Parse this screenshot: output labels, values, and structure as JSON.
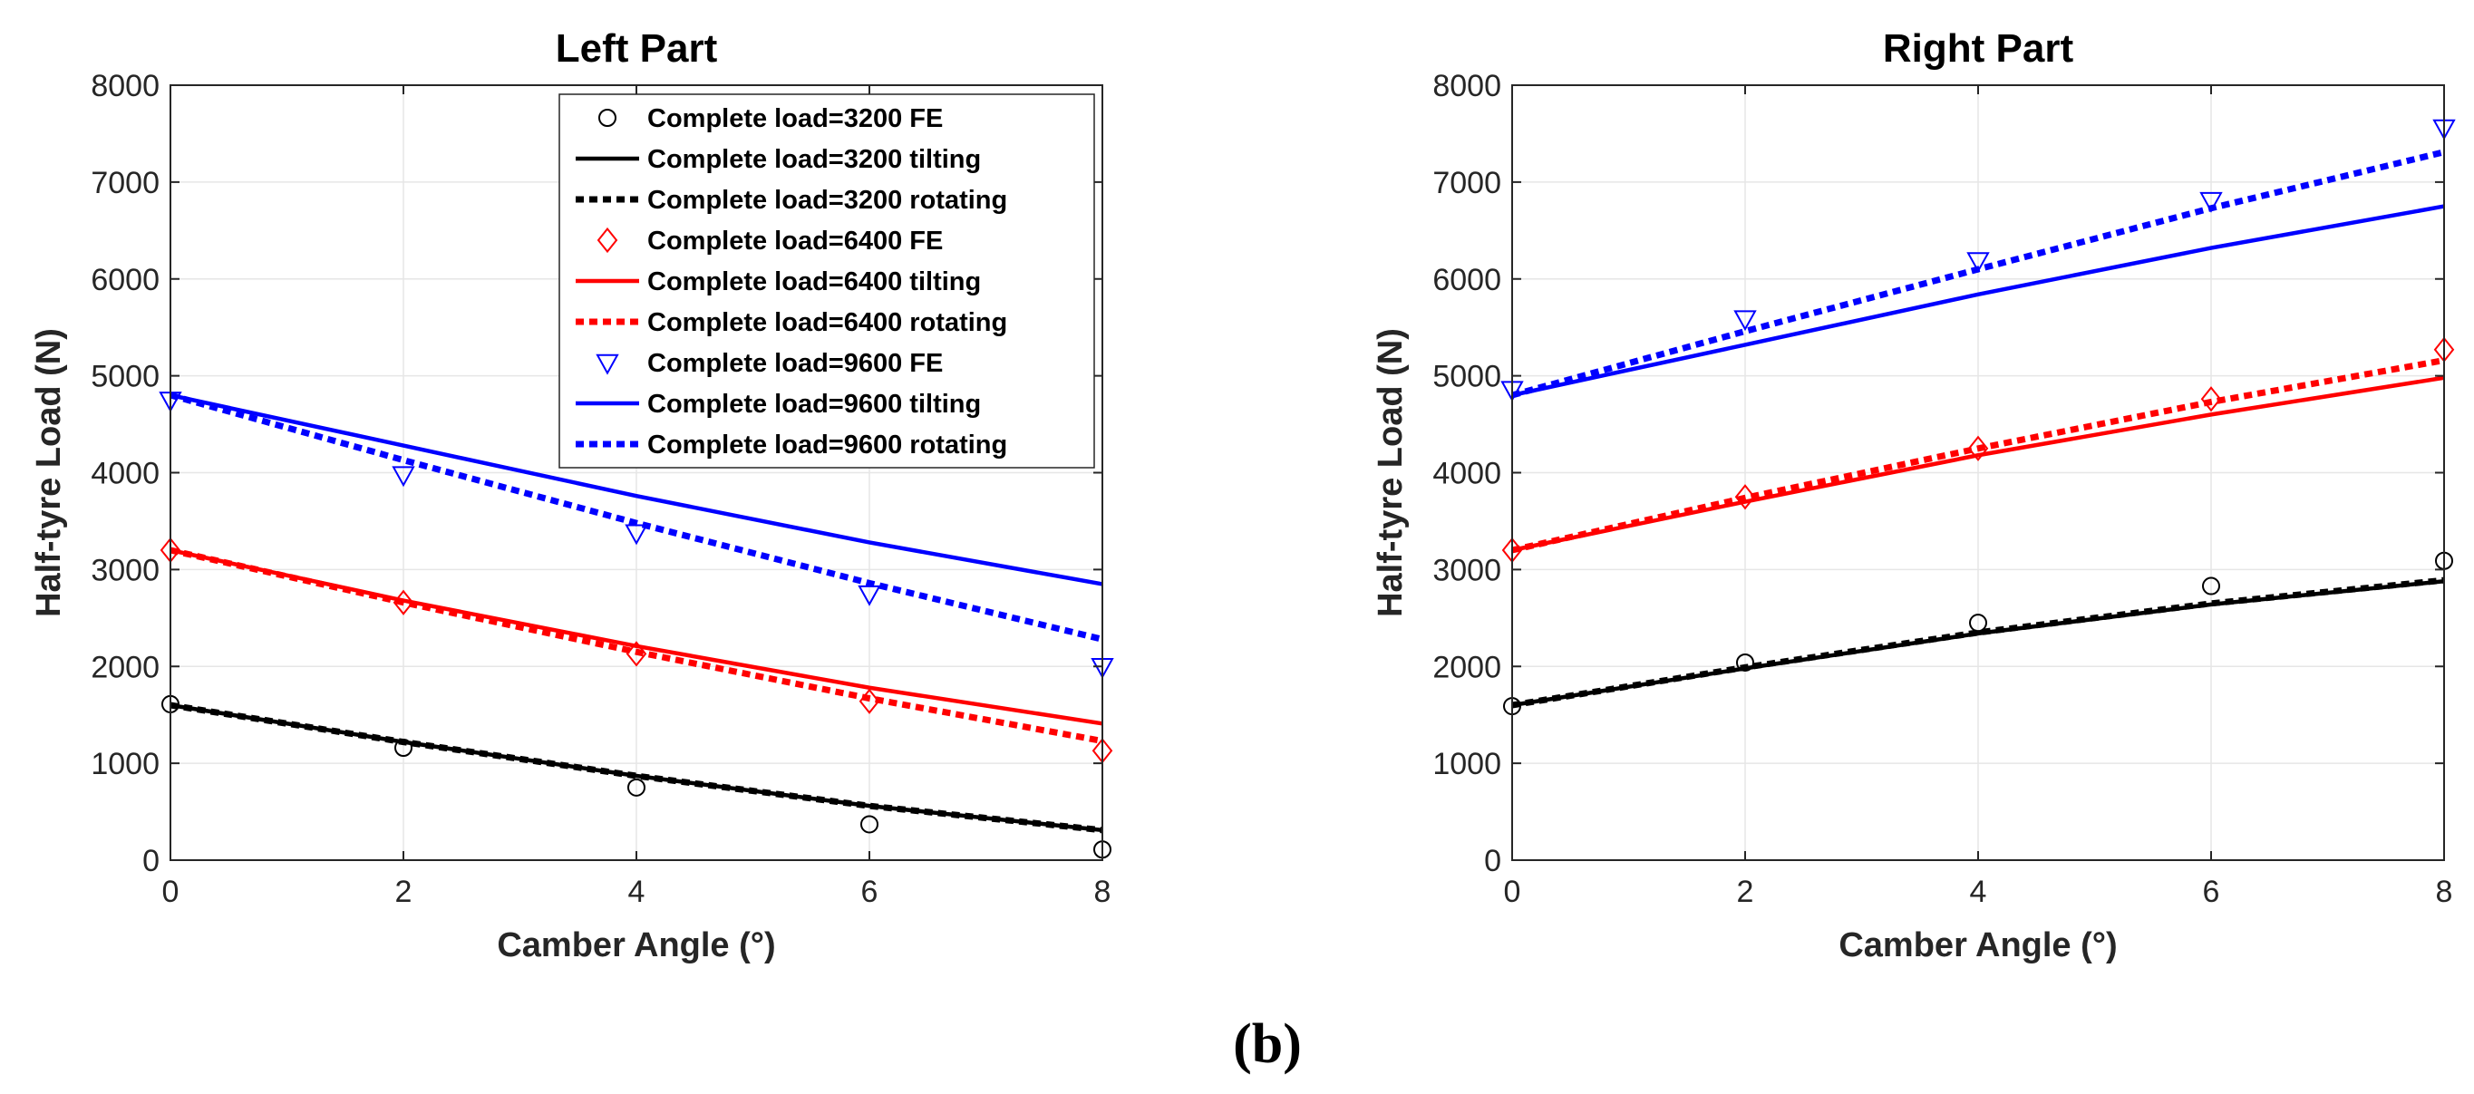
{
  "caption": "(b)",
  "colors": {
    "3200": "#000000",
    "6400": "#ff0000",
    "9600": "#0000ff"
  },
  "legend_labels": [
    "Complete load=3200 FE",
    "Complete load=3200 tilting",
    "Complete load=3200 rotating",
    "Complete load=6400 FE",
    "Complete load=6400 tilting",
    "Complete load=6400 rotating",
    "Complete load=9600 FE",
    "Complete load=9600 tilting",
    "Complete load=9600 rotating"
  ],
  "chart_data": [
    {
      "type": "line",
      "title": "Left Part",
      "xlabel": "Camber Angle (°)",
      "ylabel": "Half-tyre Load (N)",
      "xlim": [
        0,
        8
      ],
      "ylim": [
        0,
        8000
      ],
      "xticks": [
        0,
        2,
        4,
        6,
        8
      ],
      "yticks": [
        0,
        1000,
        2000,
        3000,
        4000,
        5000,
        6000,
        7000,
        8000
      ],
      "grid": true,
      "legend": "top-right",
      "x": [
        0,
        2,
        4,
        6,
        8
      ],
      "series": [
        {
          "name": "Complete load=3200 FE",
          "style": "marker-circle",
          "color": "#000000",
          "values": [
            1610,
            1160,
            750,
            370,
            110
          ]
        },
        {
          "name": "Complete load=3200 tilting",
          "style": "solid",
          "color": "#000000",
          "values": [
            1600,
            1220,
            870,
            560,
            310
          ]
        },
        {
          "name": "Complete load=3200 rotating",
          "style": "dashed",
          "color": "#000000",
          "values": [
            1600,
            1220,
            870,
            560,
            310
          ]
        },
        {
          "name": "Complete load=6400 FE",
          "style": "marker-diamond",
          "color": "#ff0000",
          "values": [
            3200,
            2660,
            2130,
            1640,
            1130
          ]
        },
        {
          "name": "Complete load=6400 tilting",
          "style": "solid",
          "color": "#ff0000",
          "values": [
            3200,
            2680,
            2210,
            1780,
            1410
          ]
        },
        {
          "name": "Complete load=6400 rotating",
          "style": "dashed",
          "color": "#ff0000",
          "values": [
            3200,
            2660,
            2150,
            1670,
            1230
          ]
        },
        {
          "name": "Complete load=9600 FE",
          "style": "marker-triangle",
          "color": "#0000ff",
          "values": [
            4750,
            3980,
            3380,
            2750,
            2000
          ]
        },
        {
          "name": "Complete load=9600 tilting",
          "style": "solid",
          "color": "#0000ff",
          "values": [
            4800,
            4280,
            3760,
            3280,
            2850
          ]
        },
        {
          "name": "Complete load=9600 rotating",
          "style": "dashed",
          "color": "#0000ff",
          "values": [
            4800,
            4130,
            3480,
            2860,
            2280
          ]
        }
      ]
    },
    {
      "type": "line",
      "title": "Right Part",
      "xlabel": "Camber Angle (°)",
      "ylabel": "Half-tyre Load (N)",
      "xlim": [
        0,
        8
      ],
      "ylim": [
        0,
        8000
      ],
      "xticks": [
        0,
        2,
        4,
        6,
        8
      ],
      "yticks": [
        0,
        1000,
        2000,
        3000,
        4000,
        5000,
        6000,
        7000,
        8000
      ],
      "grid": true,
      "x": [
        0,
        2,
        4,
        6,
        8
      ],
      "series": [
        {
          "name": "Complete load=3200 FE",
          "style": "marker-circle",
          "color": "#000000",
          "values": [
            1590,
            2040,
            2450,
            2830,
            3090
          ]
        },
        {
          "name": "Complete load=3200 tilting",
          "style": "solid",
          "color": "#000000",
          "values": [
            1600,
            1980,
            2340,
            2640,
            2880
          ]
        },
        {
          "name": "Complete load=3200 rotating",
          "style": "dashed",
          "color": "#000000",
          "values": [
            1600,
            1990,
            2350,
            2650,
            2890
          ]
        },
        {
          "name": "Complete load=6400 FE",
          "style": "marker-diamond",
          "color": "#ff0000",
          "values": [
            3200,
            3750,
            4250,
            4760,
            5270
          ]
        },
        {
          "name": "Complete load=6400 tilting",
          "style": "solid",
          "color": "#ff0000",
          "values": [
            3200,
            3700,
            4180,
            4600,
            4980
          ]
        },
        {
          "name": "Complete load=6400 rotating",
          "style": "dashed",
          "color": "#ff0000",
          "values": [
            3200,
            3740,
            4250,
            4730,
            5160
          ]
        },
        {
          "name": "Complete load=9600 FE",
          "style": "marker-triangle",
          "color": "#0000ff",
          "values": [
            4860,
            5590,
            6190,
            6810,
            7560
          ]
        },
        {
          "name": "Complete load=9600 tilting",
          "style": "solid",
          "color": "#0000ff",
          "values": [
            4800,
            5320,
            5840,
            6320,
            6750
          ]
        },
        {
          "name": "Complete load=9600 rotating",
          "style": "dashed",
          "color": "#0000ff",
          "values": [
            4800,
            5460,
            6100,
            6730,
            7310
          ]
        }
      ]
    }
  ]
}
